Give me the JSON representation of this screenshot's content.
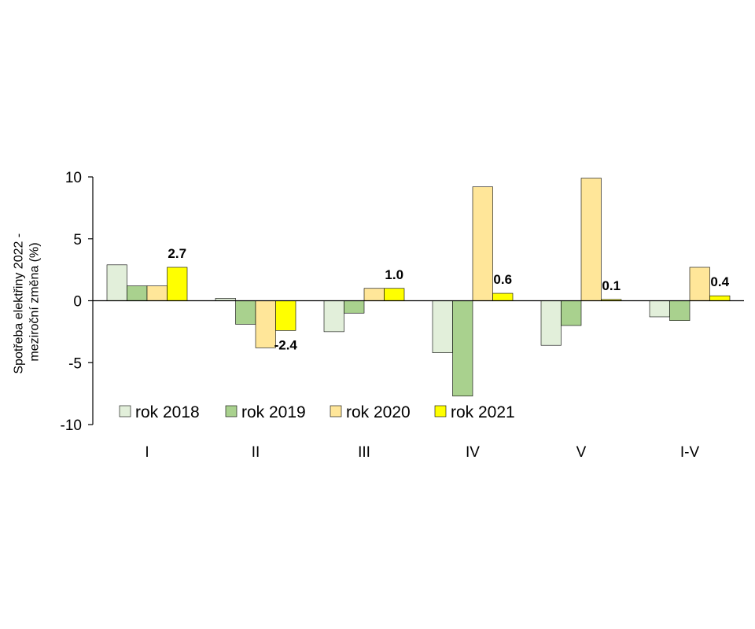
{
  "chart_data": {
    "type": "bar",
    "categories": [
      "I",
      "II",
      "III",
      "IV",
      "V",
      "I-V"
    ],
    "series": [
      {
        "name": "rok 2018",
        "color": "#E2EFDA",
        "values": [
          2.9,
          0.2,
          -2.5,
          -4.2,
          -3.6,
          -1.3
        ]
      },
      {
        "name": "rok 2019",
        "color": "#A9D18E",
        "values": [
          1.2,
          -1.9,
          -1.0,
          -7.7,
          -2.0,
          -1.6
        ]
      },
      {
        "name": "rok 2020",
        "color": "#FFE699",
        "values": [
          1.2,
          -3.8,
          1.0,
          9.2,
          9.9,
          2.7
        ]
      },
      {
        "name": "rok 2021",
        "color": "#FFFF00",
        "values": [
          2.7,
          -2.4,
          1.0,
          0.6,
          0.1,
          0.4
        ]
      }
    ],
    "data_labels": {
      "series": "rok 2021",
      "texts": [
        "2.7",
        "-2.4",
        "1.0",
        "0.6",
        "0.1",
        "0.4"
      ]
    },
    "ylabel_lines": [
      "Spotřeba elektřiny 2022 -",
      "meziroční změna (%)"
    ],
    "xlabel": "",
    "ylim": [
      -10,
      10
    ],
    "yticks": [
      10,
      5,
      0,
      -5,
      -10
    ],
    "ytick_labels": [
      "10",
      "5",
      "0",
      "-5",
      "-10"
    ],
    "grid": false,
    "legend_position": "bottom-left, inside plot"
  }
}
